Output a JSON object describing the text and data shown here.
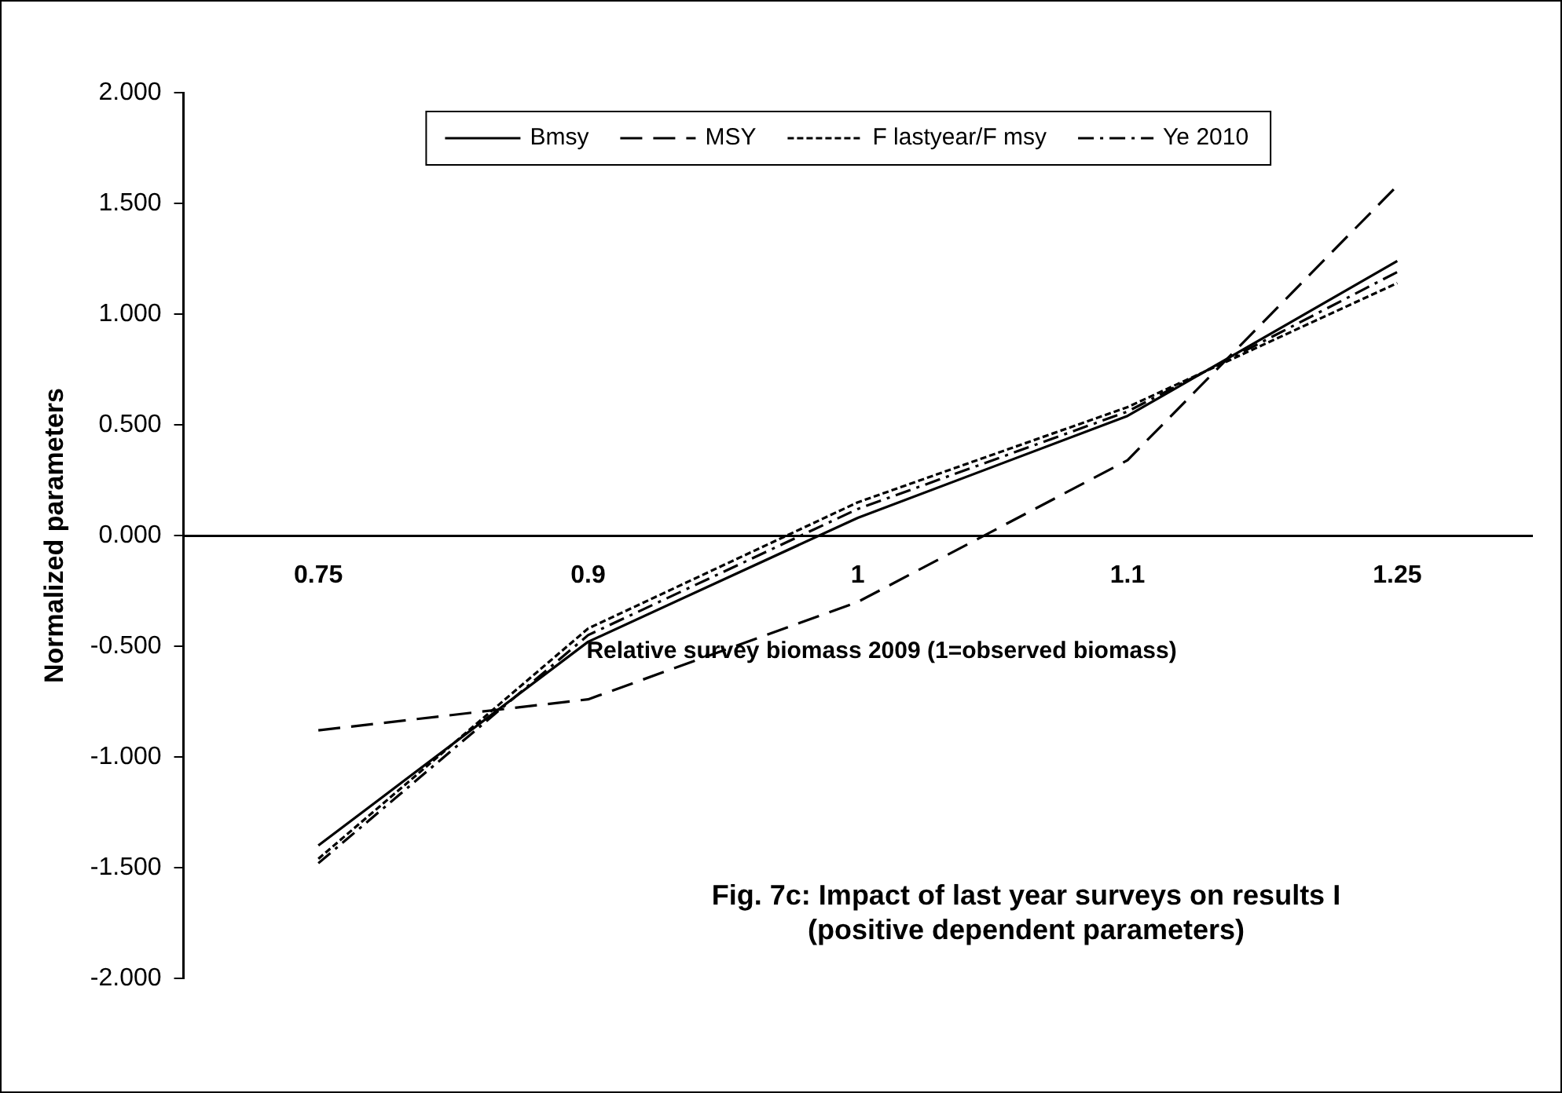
{
  "chart_data": {
    "type": "line",
    "title": "Fig. 7c: Impact of last year surveys on results I\n(positive dependent parameters)",
    "xlabel": "Relative survey biomass 2009 (1=observed biomass)",
    "ylabel": "Normalized parameters",
    "categories": [
      "0.75",
      "0.9",
      "1",
      "1.1",
      "1.25"
    ],
    "series": [
      {
        "name": "Bmsy",
        "color": "#000000",
        "line_style": "solid",
        "values": [
          -1.4,
          -0.48,
          0.08,
          0.54,
          1.24
        ]
      },
      {
        "name": "MSY",
        "color": "#000000",
        "line_style": "dashed",
        "values": [
          -0.88,
          -0.74,
          -0.3,
          0.34,
          1.58
        ]
      },
      {
        "name": "F lastyear/F msy",
        "color": "#000000",
        "line_style": "dotted",
        "values": [
          -1.46,
          -0.42,
          0.15,
          0.58,
          1.14
        ]
      },
      {
        "name": "Ye 2010",
        "color": "#000000",
        "line_style": "dashdot",
        "values": [
          -1.48,
          -0.45,
          0.12,
          0.56,
          1.19
        ]
      }
    ],
    "ylim": [
      -2,
      2
    ],
    "yticks": [
      {
        "value": -2,
        "label": "-2.000"
      },
      {
        "value": -1.5,
        "label": "-1.500"
      },
      {
        "value": -1,
        "label": "-1.000"
      },
      {
        "value": -0.5,
        "label": "-0.500"
      },
      {
        "value": 0,
        "label": "0.000"
      },
      {
        "value": 0.5,
        "label": "0.500"
      },
      {
        "value": 1,
        "label": "1.000"
      },
      {
        "value": 1.5,
        "label": "1.500"
      },
      {
        "value": 2,
        "label": "2.000"
      }
    ],
    "grid": false,
    "legend": "top",
    "marker": "none"
  }
}
